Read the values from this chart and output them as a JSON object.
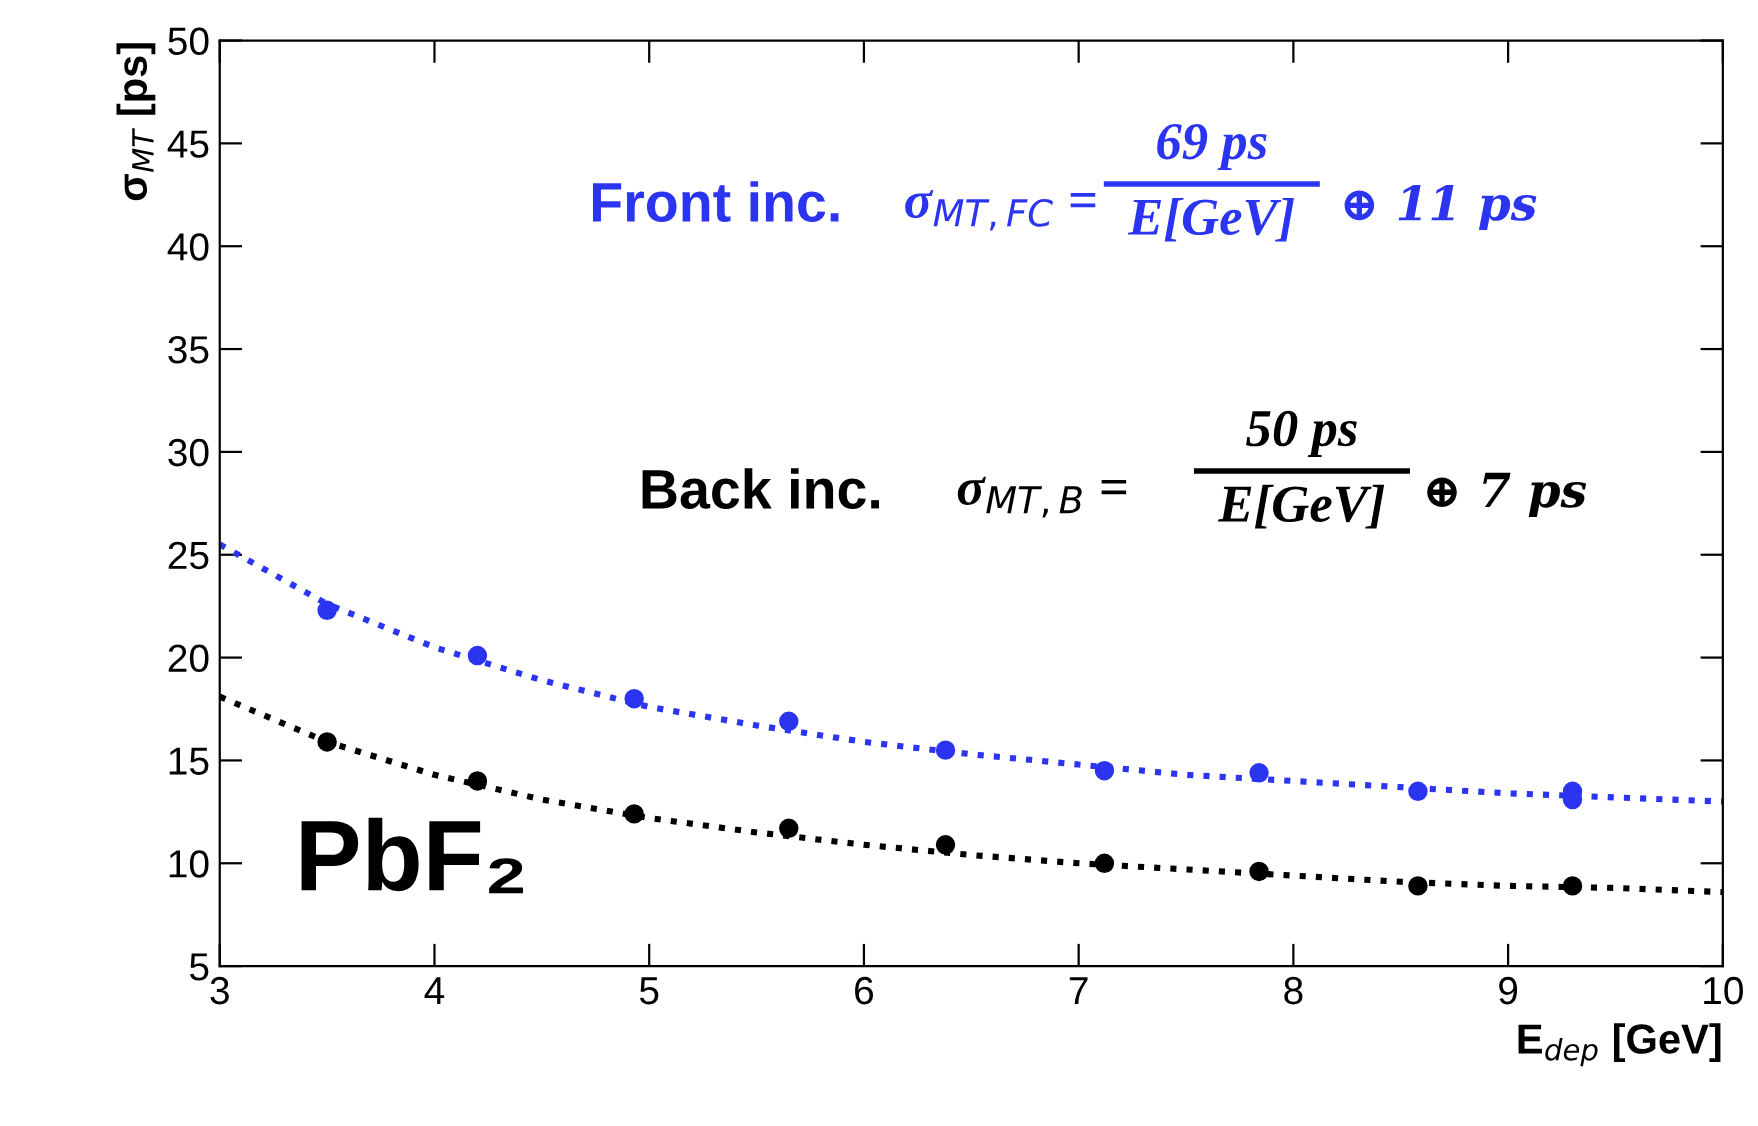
{
  "chart_data": {
    "type": "scatter",
    "xlabel": "E$_{dep}$ [GeV]",
    "ylabel": "σ$_{MT}$ [ps]",
    "xlim": [
      3,
      10
    ],
    "ylim": [
      5,
      50
    ],
    "xticks": [
      3,
      4,
      5,
      6,
      7,
      8,
      9,
      10
    ],
    "yticks": [
      5,
      10,
      15,
      20,
      25,
      30,
      35,
      40,
      45,
      50
    ],
    "grid": false,
    "series": [
      {
        "marker": "circle",
        "color": "#2b35f0",
        "x": [
          3.5,
          4.2,
          4.93,
          5.65,
          6.38,
          7.12,
          7.84,
          8.58,
          9.3,
          9.3
        ],
        "values": [
          22.3,
          20.1,
          18.0,
          16.9,
          15.5,
          14.5,
          14.4,
          13.5,
          13.1,
          13.5
        ]
      },
      {
        "type": "line",
        "marker": "none",
        "line_style": "dotted",
        "color": "#2b35f0",
        "x": [
          3,
          3.5,
          4,
          4.5,
          5,
          5.5,
          6,
          6.5,
          7,
          7.5,
          8,
          8.5,
          9,
          9.5,
          10
        ],
        "values": [
          25.5,
          22.6,
          20.5,
          18.9,
          17.6,
          16.7,
          15.9,
          15.3,
          14.8,
          14.3,
          14.0,
          13.7,
          13.4,
          13.2,
          13.0
        ]
      },
      {
        "marker": "circle",
        "color": "#000000",
        "x": [
          3.5,
          4.2,
          4.93,
          5.65,
          6.38,
          7.12,
          7.84,
          8.58,
          9.3
        ],
        "values": [
          15.9,
          14.0,
          12.4,
          11.7,
          10.9,
          10.0,
          9.6,
          8.9,
          8.9
        ]
      },
      {
        "type": "line",
        "marker": "none",
        "line_style": "dotted",
        "color": "#000000",
        "x": [
          3,
          3.5,
          4,
          4.5,
          5,
          5.5,
          6,
          6.5,
          7,
          7.5,
          8,
          8.5,
          9,
          9.5,
          10
        ],
        "values": [
          18.1,
          15.9,
          14.3,
          13.1,
          12.2,
          11.5,
          10.9,
          10.4,
          10.0,
          9.7,
          9.4,
          9.1,
          8.9,
          8.8,
          8.6
        ]
      }
    ],
    "annotations": [
      "Front inc.",
      "σ$_{MT,FC}$ =",
      "69 ps",
      "E[GeV]",
      "⊕ 11 ps",
      "Back inc.",
      "σ$_{MT,B}$ =",
      "50 ps",
      "E[GeV]",
      "⊕ 7 ps",
      "PbF₂"
    ]
  }
}
